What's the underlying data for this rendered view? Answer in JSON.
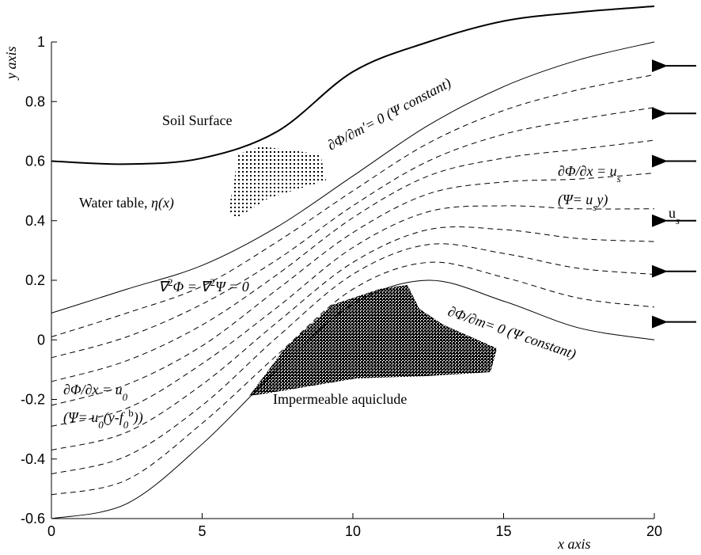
{
  "chart_data": {
    "type": "line",
    "x": [
      0,
      2.5,
      5,
      7.5,
      10,
      12.5,
      15,
      17.5,
      20
    ],
    "xlim": [
      0,
      20
    ],
    "ylim": [
      -0.6,
      1
    ],
    "xticks": [
      0,
      5,
      10,
      15,
      20
    ],
    "yticks": [
      -0.6,
      -0.4,
      -0.2,
      0,
      0.2,
      0.4,
      0.6,
      0.8,
      1
    ],
    "xlabel": "x  axis",
    "ylabel": "y axis",
    "series": [
      {
        "color": "#000000",
        "style": "solid",
        "width": 2,
        "values": [
          0.6,
          0.59,
          0.61,
          0.7,
          0.9,
          1.0,
          1.07,
          1.1,
          1.12
        ]
      },
      {
        "color": "#000000",
        "style": "solid",
        "width": 1,
        "values": [
          0.09,
          0.17,
          0.25,
          0.38,
          0.55,
          0.72,
          0.85,
          0.94,
          1.0
        ]
      },
      {
        "color": "#000000",
        "style": "dashed",
        "width": 1,
        "values": [
          0.01,
          0.09,
          0.18,
          0.33,
          0.5,
          0.66,
          0.77,
          0.84,
          0.89
        ]
      },
      {
        "color": "#000000",
        "style": "dashed",
        "width": 1,
        "values": [
          -0.06,
          0.01,
          0.12,
          0.27,
          0.45,
          0.6,
          0.69,
          0.74,
          0.78
        ]
      },
      {
        "color": "#000000",
        "style": "dashed",
        "width": 1,
        "values": [
          -0.14,
          -0.07,
          0.05,
          0.22,
          0.41,
          0.55,
          0.61,
          0.64,
          0.67
        ]
      },
      {
        "color": "#000000",
        "style": "dashed",
        "width": 1,
        "values": [
          -0.22,
          -0.15,
          -0.02,
          0.17,
          0.36,
          0.49,
          0.53,
          0.54,
          0.56
        ]
      },
      {
        "color": "#000000",
        "style": "dashed",
        "width": 1,
        "values": [
          -0.29,
          -0.23,
          -0.08,
          0.11,
          0.31,
          0.43,
          0.45,
          0.44,
          0.44
        ]
      },
      {
        "color": "#000000",
        "style": "dashed",
        "width": 1,
        "values": [
          -0.37,
          -0.31,
          -0.15,
          0.06,
          0.26,
          0.37,
          0.37,
          0.34,
          0.33
        ]
      },
      {
        "color": "#000000",
        "style": "dashed",
        "width": 1,
        "values": [
          -0.45,
          -0.39,
          -0.22,
          0.01,
          0.22,
          0.32,
          0.29,
          0.24,
          0.22
        ]
      },
      {
        "color": "#000000",
        "style": "dashed",
        "width": 1,
        "values": [
          -0.52,
          -0.47,
          -0.28,
          -0.05,
          0.17,
          0.26,
          0.21,
          0.14,
          0.11
        ]
      },
      {
        "color": "#000000",
        "style": "solid",
        "width": 1,
        "values": [
          -0.6,
          -0.55,
          -0.35,
          -0.1,
          0.12,
          0.2,
          0.13,
          0.04,
          0.0
        ]
      }
    ],
    "inflow_arrows": [
      0.92,
      0.76,
      0.6,
      0.4,
      0.23,
      0.06
    ],
    "annotations": [
      [
        {
          "text": "Soil Surface"
        }
      ],
      [
        {
          "text": "Water table,  "
        },
        {
          "text": "η(x)",
          "style": "italic"
        }
      ],
      [
        {
          "text": "∂Φ/∂m′= 0 (Ψ   constant)",
          "style": "italic"
        }
      ],
      [
        {
          "text": "∂Φ/∂x = u",
          "style": "italic"
        },
        {
          "text": "s",
          "style": "sub"
        }
      ],
      [
        {
          "text": "(Ψ= u",
          "style": "italic"
        },
        {
          "text": "s",
          "style": "sub"
        },
        {
          "text": "y)",
          "style": "italic"
        }
      ],
      [
        {
          "text": "∇",
          "style": "italic"
        },
        {
          "text": "2",
          "style": "sup"
        },
        {
          "text": "Φ = ∇",
          "style": "italic"
        },
        {
          "text": "2",
          "style": "sup"
        },
        {
          "text": "Ψ = 0",
          "style": "italic"
        }
      ],
      [
        {
          "text": "∂Φ/∂m= 0 (Ψ   constant)",
          "style": "italic"
        }
      ],
      [
        {
          "text": "Impermeable aquiclude"
        }
      ],
      [
        {
          "text": "∂Φ/∂x = u",
          "style": "italic"
        },
        {
          "text": "0",
          "style": "sub"
        }
      ],
      [
        {
          "text": "(Ψ= u",
          "style": "italic"
        },
        {
          "text": "0",
          "style": "sub"
        },
        {
          "text": "(y-f",
          "style": "italic"
        },
        {
          "text": "0",
          "style": "sub"
        },
        {
          "text": "b",
          "style": "sup"
        },
        {
          "text": "))",
          "style": "italic"
        }
      ],
      [
        {
          "text": "u"
        },
        {
          "text": "s",
          "style": "sub"
        }
      ]
    ]
  }
}
